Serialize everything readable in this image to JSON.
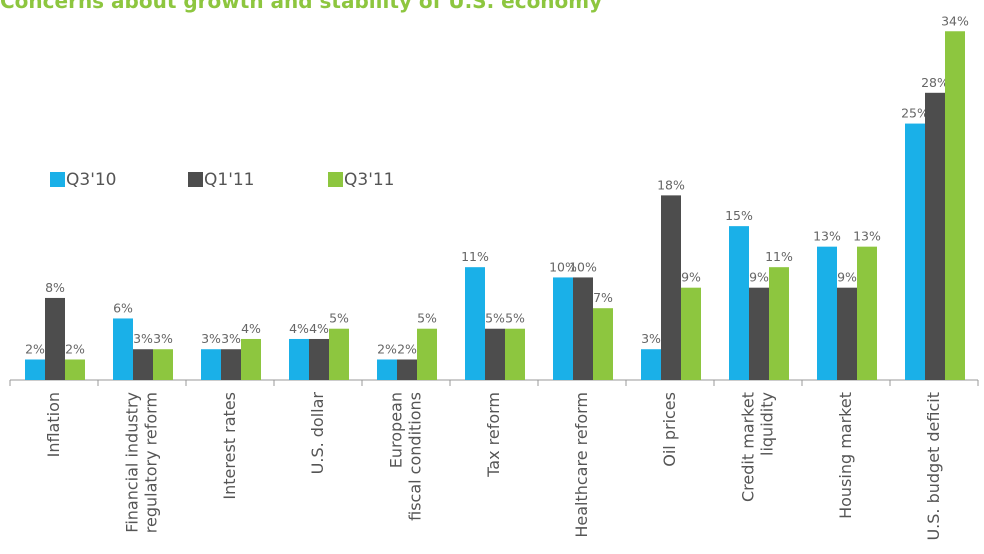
{
  "chart_data": {
    "type": "bar",
    "title": "Concerns about growth and stability of U.S. economy",
    "categories": [
      "Inflation",
      "Financial industry\nregulatory reform",
      "Interest rates",
      "U.S. dollar",
      "European\nfiscal conditions",
      "Tax reform",
      "Healthcare reform",
      "Oil prices",
      "Credit market\nliquidity",
      "Housing market",
      "U.S. budget deficit"
    ],
    "series": [
      {
        "name": "Q3'10",
        "color": "#1ab0e8",
        "values": [
          2,
          6,
          3,
          4,
          2,
          11,
          10,
          3,
          15,
          13,
          25
        ],
        "value_labels": [
          "2%",
          "6%",
          "3%",
          "4%",
          "2%",
          "11%",
          "10%",
          "3%",
          "15%",
          "13%",
          "25%"
        ]
      },
      {
        "name": "Q1'11",
        "color": "#4d4d4d",
        "values": [
          8,
          3,
          3,
          4,
          2,
          5,
          10,
          18,
          9,
          9,
          28
        ],
        "value_labels": [
          "8%",
          "3%",
          "3%",
          "4%",
          "2%",
          "5%",
          "10%",
          "18%",
          "9%",
          "9%",
          "28%"
        ]
      },
      {
        "name": "Q3'11",
        "color": "#8dc63f",
        "values": [
          2,
          3,
          4,
          5,
          5,
          5,
          7,
          9,
          11,
          13,
          34
        ],
        "value_labels": [
          "2%",
          "3%",
          "4%",
          "5%",
          "5%",
          "5%",
          "7%",
          "9%",
          "11%",
          "13%",
          "34%"
        ]
      }
    ],
    "ylim": [
      0,
      35
    ]
  }
}
